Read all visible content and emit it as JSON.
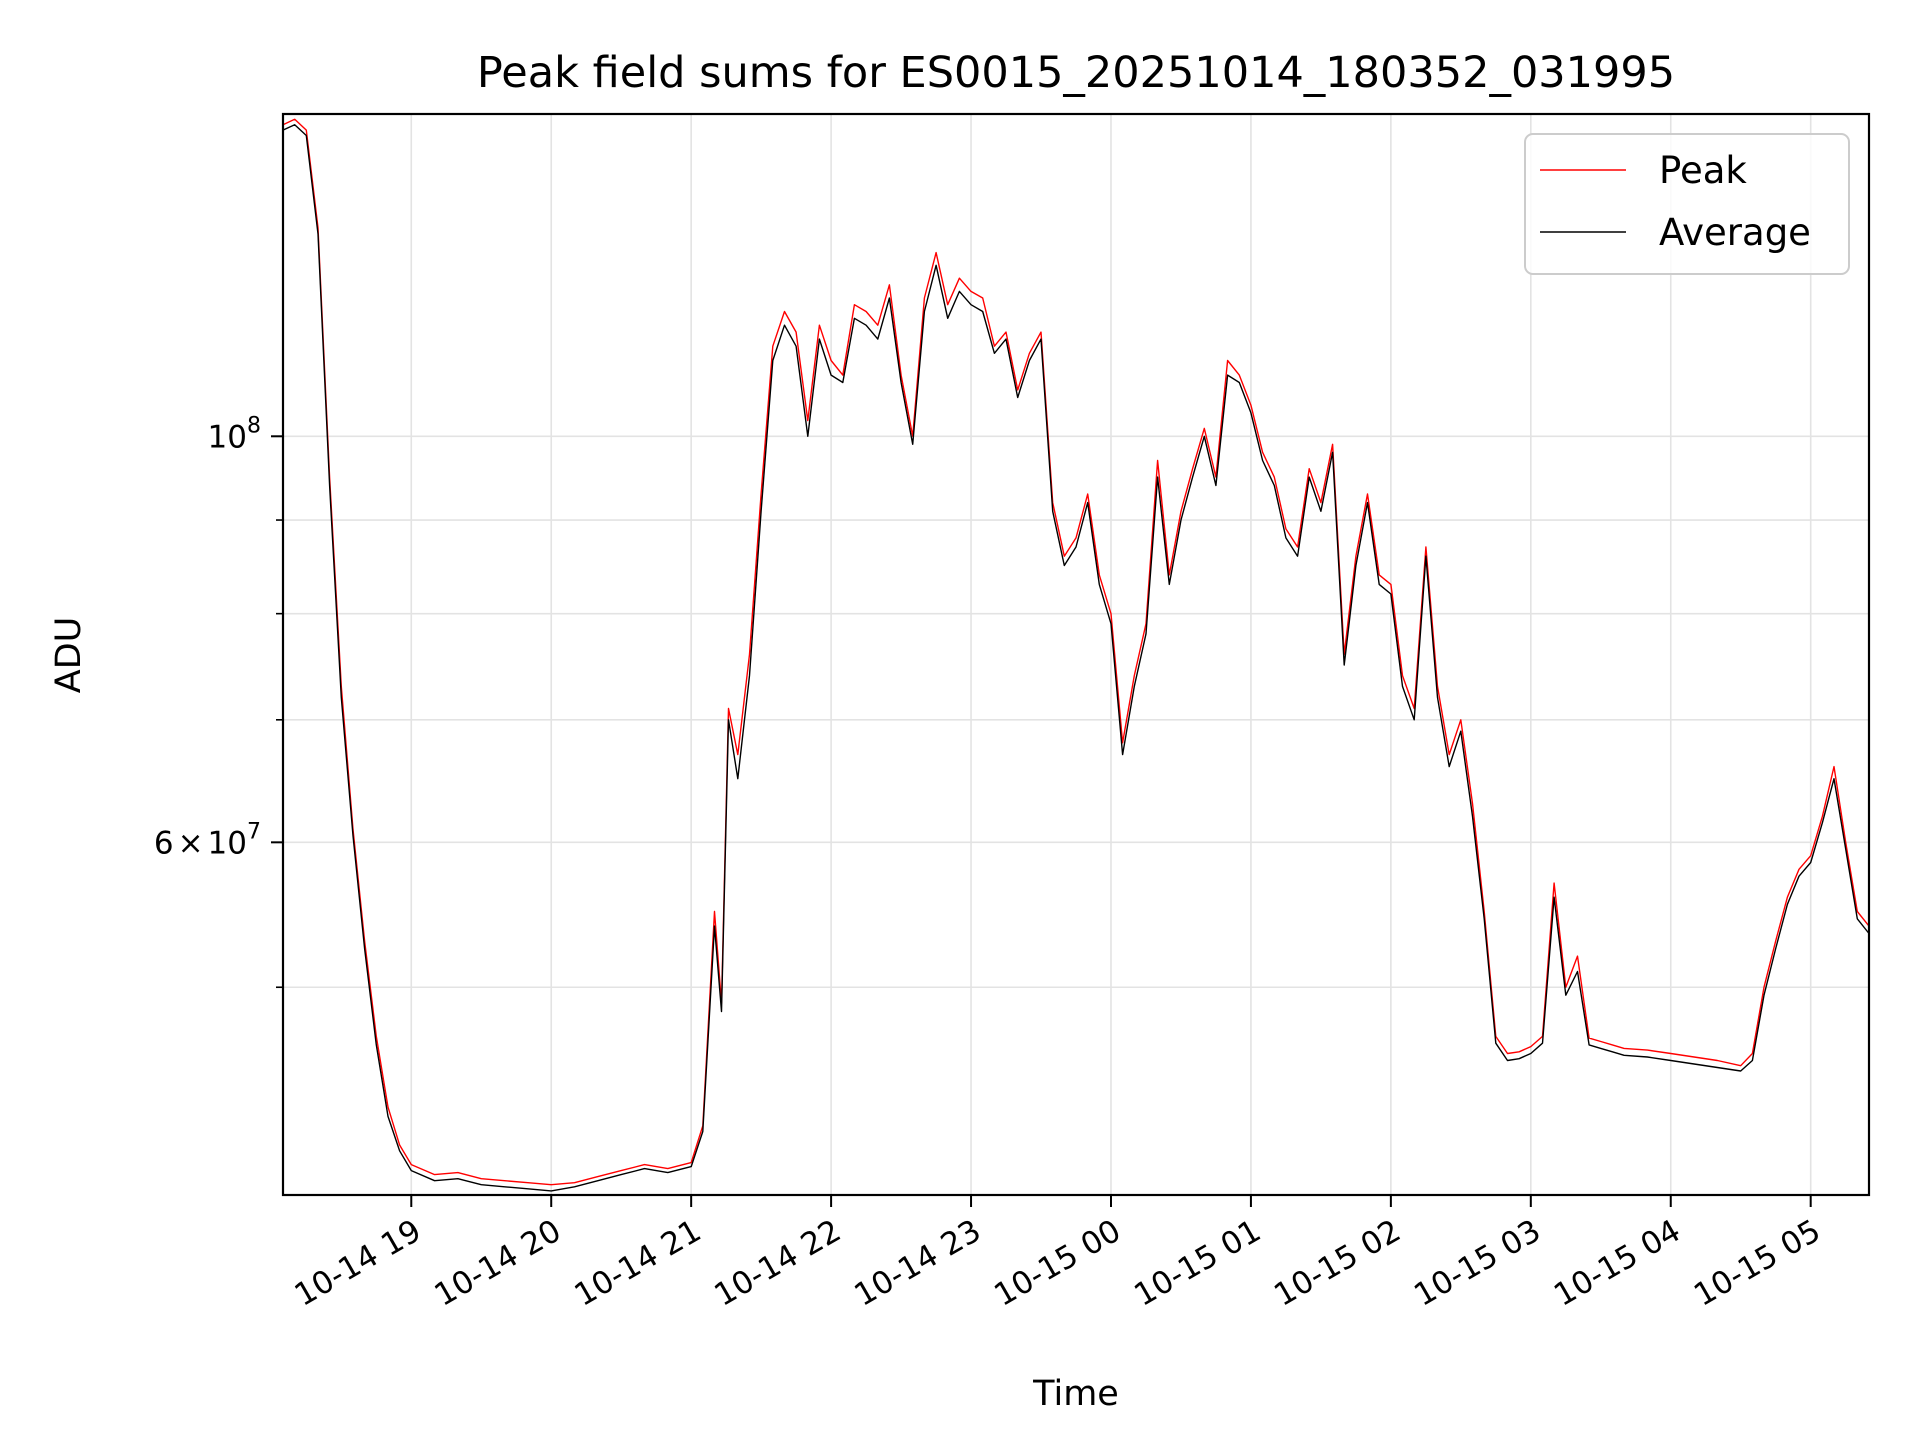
{
  "chart_data": {
    "type": "line",
    "title": "Peak field sums for ES0015_20251014_180352_031995",
    "xlabel": "Time",
    "ylabel": "ADU",
    "y_scale": "log",
    "ylim": [
      38500000,
      150000000
    ],
    "xlim": [
      "2025-10-14 18:05",
      "2025-10-15 05:25"
    ],
    "grid": true,
    "legend_position": "top-right",
    "x_ticks": [
      "10-14 19",
      "10-14 20",
      "10-14 21",
      "10-14 22",
      "10-14 23",
      "10-15 00",
      "10-15 01",
      "10-15 02",
      "10-15 03",
      "10-15 04",
      "10-15 05"
    ],
    "y_tick_labels": [
      {
        "value": 100000000,
        "base": "10",
        "exp": "8"
      },
      {
        "value": 60000000,
        "mantissa": "6",
        "base": "10",
        "exp": "7"
      }
    ],
    "y_minor_ticks": [
      50000000,
      70000000,
      80000000,
      90000000
    ],
    "x": [
      "2025-10-14 18:05",
      "2025-10-14 18:10",
      "2025-10-14 18:15",
      "2025-10-14 18:20",
      "2025-10-14 18:25",
      "2025-10-14 18:30",
      "2025-10-14 18:35",
      "2025-10-14 18:40",
      "2025-10-14 18:45",
      "2025-10-14 18:50",
      "2025-10-14 18:55",
      "2025-10-14 19:00",
      "2025-10-14 19:10",
      "2025-10-14 19:20",
      "2025-10-14 19:30",
      "2025-10-14 19:40",
      "2025-10-14 19:50",
      "2025-10-14 20:00",
      "2025-10-14 20:10",
      "2025-10-14 20:20",
      "2025-10-14 20:30",
      "2025-10-14 20:40",
      "2025-10-14 20:50",
      "2025-10-14 21:00",
      "2025-10-14 21:05",
      "2025-10-14 21:10",
      "2025-10-14 21:13",
      "2025-10-14 21:16",
      "2025-10-14 21:20",
      "2025-10-14 21:25",
      "2025-10-14 21:30",
      "2025-10-14 21:35",
      "2025-10-14 21:40",
      "2025-10-14 21:45",
      "2025-10-14 21:50",
      "2025-10-14 21:55",
      "2025-10-14 22:00",
      "2025-10-14 22:05",
      "2025-10-14 22:10",
      "2025-10-14 22:15",
      "2025-10-14 22:20",
      "2025-10-14 22:25",
      "2025-10-14 22:30",
      "2025-10-14 22:35",
      "2025-10-14 22:40",
      "2025-10-14 22:45",
      "2025-10-14 22:50",
      "2025-10-14 22:55",
      "2025-10-14 23:00",
      "2025-10-14 23:05",
      "2025-10-14 23:10",
      "2025-10-14 23:15",
      "2025-10-14 23:20",
      "2025-10-14 23:25",
      "2025-10-14 23:30",
      "2025-10-14 23:35",
      "2025-10-14 23:40",
      "2025-10-14 23:45",
      "2025-10-14 23:50",
      "2025-10-14 23:55",
      "2025-10-15 00:00",
      "2025-10-15 00:05",
      "2025-10-15 00:10",
      "2025-10-15 00:15",
      "2025-10-15 00:20",
      "2025-10-15 00:25",
      "2025-10-15 00:30",
      "2025-10-15 00:35",
      "2025-10-15 00:40",
      "2025-10-15 00:45",
      "2025-10-15 00:50",
      "2025-10-15 00:55",
      "2025-10-15 01:00",
      "2025-10-15 01:05",
      "2025-10-15 01:10",
      "2025-10-15 01:15",
      "2025-10-15 01:20",
      "2025-10-15 01:25",
      "2025-10-15 01:30",
      "2025-10-15 01:35",
      "2025-10-15 01:40",
      "2025-10-15 01:45",
      "2025-10-15 01:50",
      "2025-10-15 01:55",
      "2025-10-15 02:00",
      "2025-10-15 02:05",
      "2025-10-15 02:10",
      "2025-10-15 02:15",
      "2025-10-15 02:20",
      "2025-10-15 02:25",
      "2025-10-15 02:30",
      "2025-10-15 02:35",
      "2025-10-15 02:40",
      "2025-10-15 02:45",
      "2025-10-15 02:50",
      "2025-10-15 02:55",
      "2025-10-15 03:00",
      "2025-10-15 03:05",
      "2025-10-15 03:10",
      "2025-10-15 03:15",
      "2025-10-15 03:20",
      "2025-10-15 03:25",
      "2025-10-15 03:30",
      "2025-10-15 03:35",
      "2025-10-15 03:40",
      "2025-10-15 03:50",
      "2025-10-15 04:00",
      "2025-10-15 04:10",
      "2025-10-15 04:20",
      "2025-10-15 04:30",
      "2025-10-15 04:35",
      "2025-10-15 04:40",
      "2025-10-15 04:45",
      "2025-10-15 04:50",
      "2025-10-15 04:55",
      "2025-10-15 05:00",
      "2025-10-15 05:05",
      "2025-10-15 05:10",
      "2025-10-15 05:15",
      "2025-10-15 05:20",
      "2025-10-15 05:25"
    ],
    "series": [
      {
        "name": "Peak",
        "color": "#ff0000",
        "values": [
          148000000,
          149000000,
          147000000,
          130000000,
          95000000,
          73000000,
          61000000,
          53000000,
          47000000,
          43000000,
          41000000,
          40000000,
          39500000,
          39600000,
          39300000,
          39200000,
          39100000,
          39000000,
          39100000,
          39400000,
          39700000,
          40000000,
          39800000,
          40100000,
          42000000,
          55000000,
          49000000,
          71000000,
          67000000,
          76000000,
          93000000,
          112000000,
          117000000,
          114000000,
          102000000,
          115000000,
          110000000,
          108000000,
          118000000,
          117000000,
          115000000,
          121000000,
          108000000,
          100000000,
          119000000,
          126000000,
          118000000,
          122000000,
          120000000,
          119000000,
          112000000,
          114000000,
          106000000,
          111000000,
          114000000,
          92000000,
          86000000,
          88000000,
          93000000,
          84000000,
          80000000,
          68000000,
          74000000,
          79000000,
          97000000,
          84000000,
          91000000,
          96000000,
          101000000,
          95000000,
          110000000,
          108000000,
          104000000,
          98000000,
          95000000,
          89000000,
          87000000,
          96000000,
          92000000,
          99000000,
          76000000,
          86000000,
          93000000,
          84000000,
          83000000,
          74000000,
          71000000,
          87000000,
          73000000,
          67000000,
          70000000,
          63000000,
          55000000,
          47000000,
          46000000,
          46100000,
          46400000,
          47000000,
          57000000,
          50000000,
          52000000,
          46900000,
          46700000,
          46500000,
          46300000,
          46200000,
          46000000,
          45800000,
          45600000,
          45300000,
          46000000,
          50000000,
          53000000,
          56000000,
          58000000,
          59000000,
          62000000,
          66000000,
          60000000,
          55000000,
          54000000
        ]
      },
      {
        "name": "Average",
        "color": "#000000",
        "values": [
          147000000,
          148000000,
          146000000,
          129000000,
          94000000,
          72000000,
          60500000,
          52500000,
          46500000,
          42500000,
          40700000,
          39700000,
          39200000,
          39300000,
          39000000,
          38900000,
          38800000,
          38700000,
          38900000,
          39200000,
          39500000,
          39800000,
          39600000,
          39900000,
          41700000,
          54000000,
          48500000,
          70000000,
          65000000,
          74000000,
          91000000,
          110000000,
          115000000,
          112000000,
          100000000,
          113000000,
          108000000,
          107000000,
          116000000,
          115000000,
          113000000,
          119000000,
          107000000,
          99000000,
          117000000,
          124000000,
          116000000,
          120000000,
          118000000,
          117000000,
          111000000,
          113000000,
          105000000,
          110000000,
          113000000,
          91000000,
          85000000,
          87000000,
          92000000,
          83000000,
          79000000,
          67000000,
          73000000,
          78000000,
          95000000,
          83000000,
          90000000,
          95000000,
          100000000,
          94000000,
          108000000,
          107000000,
          103000000,
          97000000,
          94000000,
          88000000,
          86000000,
          95000000,
          91000000,
          98000000,
          75000000,
          85000000,
          92000000,
          83000000,
          82000000,
          73000000,
          70000000,
          86000000,
          72000000,
          66000000,
          69000000,
          62000000,
          54500000,
          46600000,
          45600000,
          45700000,
          46000000,
          46600000,
          56000000,
          49500000,
          51000000,
          46500000,
          46300000,
          46100000,
          45900000,
          45800000,
          45600000,
          45400000,
          45200000,
          45000000,
          45600000,
          49500000,
          52500000,
          55500000,
          57500000,
          58500000,
          61500000,
          65000000,
          59500000,
          54500000,
          53500000
        ]
      }
    ]
  }
}
